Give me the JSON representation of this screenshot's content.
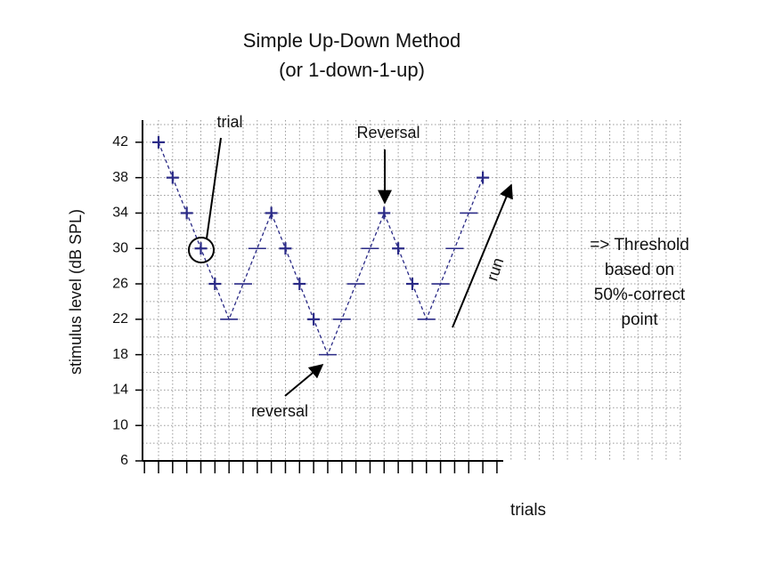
{
  "chart_data": {
    "type": "staircase",
    "title": [
      "Simple Up-Down Method",
      "(or 1-down-1-up)"
    ],
    "y_label": "stimulus level (dB SPL)",
    "x_label": "trials",
    "categories": [
      null,
      null,
      null,
      null,
      null,
      null,
      null,
      null,
      null,
      null,
      null,
      null,
      null,
      null,
      null,
      null,
      null,
      null,
      null,
      null,
      null,
      null,
      null,
      null
    ],
    "values": [
      42,
      38,
      34,
      30,
      26,
      22,
      26,
      30,
      34,
      30,
      26,
      22,
      18,
      22,
      26,
      30,
      34,
      30,
      26,
      22,
      26,
      30,
      34,
      38
    ],
    "markers": [
      "+",
      "+",
      "+",
      "+",
      "+",
      "-",
      "-",
      "-",
      "+",
      "+",
      "+",
      "+",
      "-",
      "-",
      "-",
      "-",
      "+",
      "+",
      "+",
      "-",
      "-",
      "-",
      "-",
      "+"
    ],
    "color": "#2a2a86",
    "ylim": [
      6,
      44.5
    ],
    "yticks": [
      6,
      10,
      14,
      18,
      22,
      26,
      30,
      34,
      38,
      42
    ],
    "grid": true,
    "annotations": {
      "trial": "trial",
      "reversal_top": "Reversal",
      "reversal_bottom": "reversal",
      "run": "run",
      "threshold": [
        "=> Threshold",
        "based on",
        "50%-correct",
        "point"
      ]
    }
  }
}
